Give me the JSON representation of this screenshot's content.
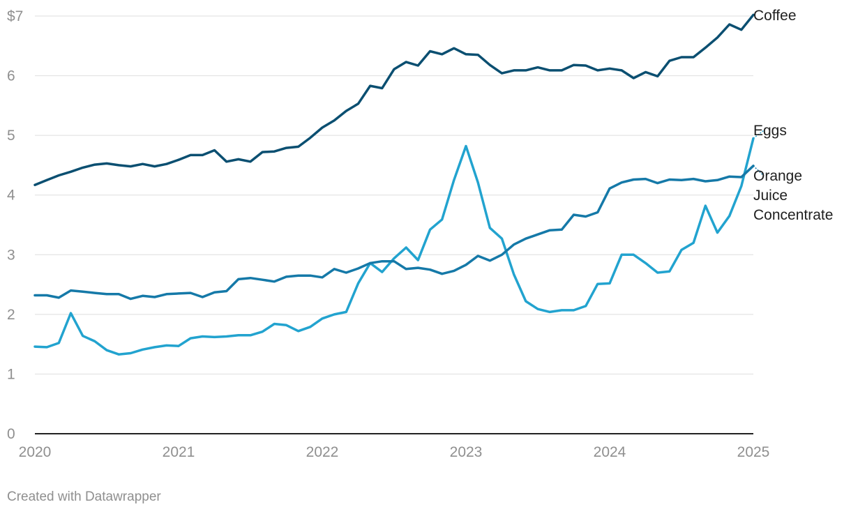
{
  "credit": "Created with Datawrapper",
  "chart_data": {
    "type": "line",
    "title": "",
    "xlabel": "",
    "ylabel": "",
    "xlim": [
      2020,
      2025
    ],
    "ylim": [
      0,
      7
    ],
    "x_ticks": [
      "2020",
      "2021",
      "2022",
      "2023",
      "2024",
      "2025"
    ],
    "y_ticks": [
      "0",
      "1",
      "2",
      "3",
      "4",
      "5",
      "6",
      "$7"
    ],
    "grid": "horizontal",
    "legend": "direct labels at line ends (right)",
    "series": [
      {
        "name": "Coffee",
        "color": "#0b4f71",
        "label_lines": [
          "Coffee"
        ],
        "values": [
          4.17,
          4.25,
          4.33,
          4.39,
          4.46,
          4.51,
          4.53,
          4.5,
          4.48,
          4.52,
          4.48,
          4.52,
          4.59,
          4.67,
          4.67,
          4.75,
          4.56,
          4.6,
          4.56,
          4.72,
          4.73,
          4.79,
          4.81,
          4.96,
          5.13,
          5.25,
          5.41,
          5.53,
          5.83,
          5.79,
          6.11,
          6.23,
          6.17,
          6.41,
          6.36,
          6.46,
          6.36,
          6.35,
          6.18,
          6.04,
          6.09,
          6.09,
          6.14,
          6.09,
          6.09,
          6.18,
          6.17,
          6.09,
          6.12,
          6.09,
          5.96,
          6.06,
          5.99,
          6.25,
          6.31,
          6.31,
          6.47,
          6.64,
          6.86,
          6.77,
          7.02
        ]
      },
      {
        "name": "Eggs",
        "color": "#22a3cf",
        "label_lines": [
          "Eggs"
        ],
        "values": [
          1.46,
          1.45,
          1.52,
          2.02,
          1.64,
          1.55,
          1.4,
          1.33,
          1.35,
          1.41,
          1.45,
          1.48,
          1.47,
          1.6,
          1.63,
          1.62,
          1.63,
          1.65,
          1.65,
          1.71,
          1.84,
          1.82,
          1.72,
          1.79,
          1.93,
          2.0,
          2.04,
          2.52,
          2.86,
          2.71,
          2.94,
          3.12,
          2.91,
          3.42,
          3.59,
          4.25,
          4.82,
          4.21,
          3.45,
          3.27,
          2.67,
          2.22,
          2.09,
          2.04,
          2.07,
          2.07,
          2.14,
          2.51,
          2.52,
          3.0,
          3.0,
          2.86,
          2.7,
          2.72,
          3.08,
          3.2,
          3.82,
          3.37,
          3.65,
          4.15,
          4.95
        ]
      },
      {
        "name": "Orange Juice Concentrate",
        "color": "#1579a8",
        "label_lines": [
          "Orange",
          "Juice",
          "Concentrate"
        ],
        "values": [
          2.32,
          2.32,
          2.28,
          2.4,
          2.38,
          2.36,
          2.34,
          2.34,
          2.26,
          2.31,
          2.29,
          2.34,
          2.35,
          2.36,
          2.29,
          2.37,
          2.39,
          2.59,
          2.61,
          2.58,
          2.55,
          2.63,
          2.65,
          2.65,
          2.62,
          2.76,
          2.7,
          2.77,
          2.86,
          2.89,
          2.89,
          2.76,
          2.78,
          2.75,
          2.68,
          2.73,
          2.83,
          2.98,
          2.9,
          3.0,
          3.17,
          3.27,
          3.34,
          3.41,
          3.42,
          3.67,
          3.64,
          3.71,
          4.11,
          4.21,
          4.26,
          4.27,
          4.2,
          4.26,
          4.25,
          4.27,
          4.23,
          4.25,
          4.31,
          4.3,
          4.49
        ]
      }
    ]
  }
}
